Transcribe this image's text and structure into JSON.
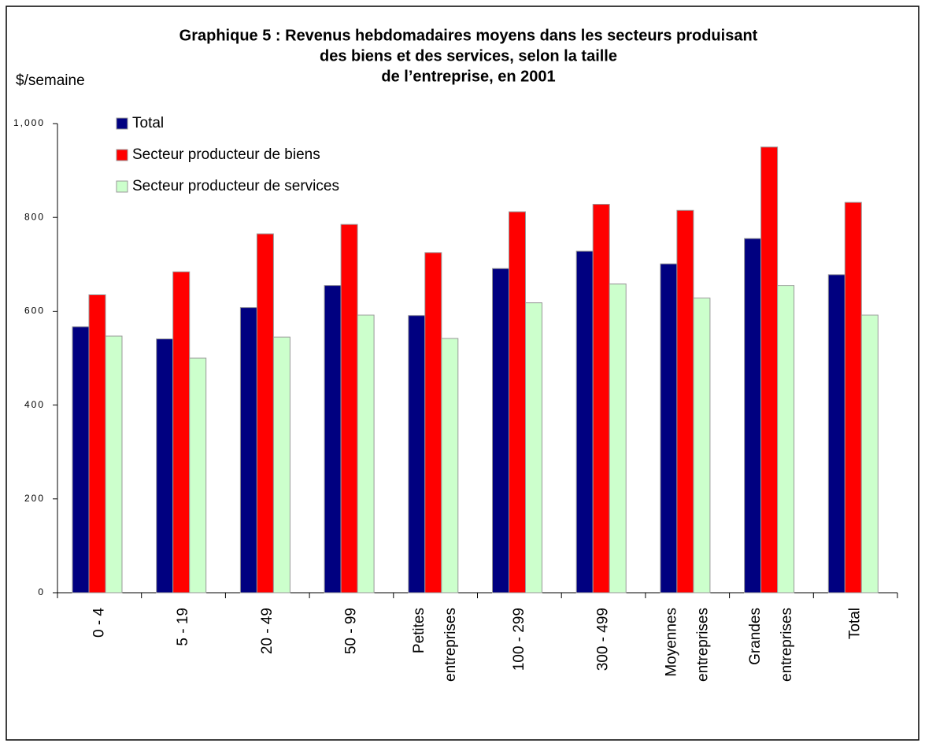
{
  "chart_data": {
    "type": "bar",
    "title": [
      "Graphique 5 : Revenus hebdomadaires moyens dans les secteurs produisant",
      "des biens et des services, selon la taille",
      "de l’entreprise, en 2001"
    ],
    "y_label": "$/semaine",
    "categories": [
      "0 - 4",
      "5 - 19",
      "20 - 49",
      "50 - 99",
      "Petites entreprises",
      "100 - 299",
      "300 - 499",
      "Moyennes entreprises",
      "Grandes entreprises",
      "Total"
    ],
    "series": [
      {
        "name": "Total",
        "color": "#000080",
        "values": [
          567,
          541,
          608,
          655,
          591,
          691,
          728,
          701,
          755,
          678
        ]
      },
      {
        "name": "Secteur producteur de biens",
        "color": "#ff0000",
        "values": [
          635,
          684,
          765,
          785,
          725,
          812,
          828,
          815,
          950,
          832
        ]
      },
      {
        "name": "Secteur producteur de services",
        "color": "#ccffcc",
        "values": [
          547,
          500,
          545,
          592,
          542,
          618,
          658,
          628,
          655,
          592
        ]
      }
    ],
    "ylim": [
      0,
      1000
    ],
    "yticks": [
      0,
      200,
      400,
      600,
      800,
      {
        "value": 1000,
        "label": "1,000"
      }
    ],
    "grid": false,
    "legend": "top-left"
  }
}
